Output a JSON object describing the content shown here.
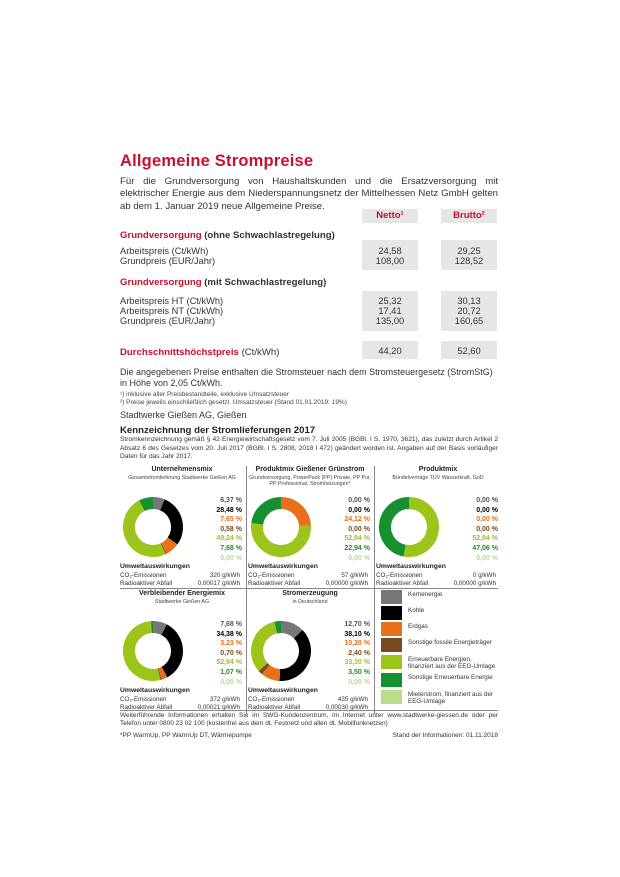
{
  "title": "Allgemeine Strompreise",
  "intro": "Für die Grundversorgung von Haushaltskunden und die Ersatzversorgung mit elektrischer Energie aus dem Niederspannungsnetz der Mittelhessen Netz GmbH gelten ab dem 1. Januar 2019 neue Allgemeine Preise.",
  "headers": {
    "netto": "Netto¹",
    "brutto": "Brutto²"
  },
  "section1": {
    "title": "Grundversorgung",
    "sub": "(ohne Schwachlastregelung)",
    "rows": [
      {
        "label": "Arbeitspreis (Ct/kWh)",
        "netto": "24,58",
        "brutto": "29,25"
      },
      {
        "label": "Grundpreis (EUR/Jahr)",
        "netto": "108,00",
        "brutto": "128,52"
      }
    ]
  },
  "section2": {
    "title": "Grundversorgung",
    "sub": "(mit Schwachlastregelung)",
    "rows": [
      {
        "label": "Arbeitspreis HT (Ct/kWh)",
        "netto": "25,32",
        "brutto": "30,13"
      },
      {
        "label": "Arbeitspreis NT (Ct/kWh)",
        "netto": "17,41",
        "brutto": "20,72"
      },
      {
        "label": "Grundpreis (EUR/Jahr)",
        "netto": "135,00",
        "brutto": "160,65"
      }
    ]
  },
  "section3": {
    "title": "Durchschnittshöchstpreis",
    "sub": "(Ct/kWh)",
    "netto": "44,20",
    "brutto": "52,60"
  },
  "tax_note": "Die angegebenen Preise enthalten die Stromsteuer nach dem Stromsteuergesetz (StromStG) in Höhe von 2,05 Ct/kWh.",
  "footnote1": "¹) inklusive aller Preisbestandteile, exklusive Umsatzsteuer",
  "footnote2": "²) Preise jeweils einschließlich gesetzl. Umsatzsteuer (Stand 01.01.2019: 19%)",
  "company": "Stadtwerke Gießen AG, Gießen",
  "kenn_title": "Kennzeichnung der Stromlieferungen 2017",
  "kenn_text": "Stromkennzeichnung gemäß § 42 Energiewirtschaftsgesetz vom 7. Juli 2005 (BGBl. I S. 1970, 3621), das zuletzt durch Artikel 2 Absatz 6 des Gesetzes vom 20. Juli 2017 (BGBl. I S. 2808, 2018 I 472) geändert worden ist. Angaben auf der Basis vorläufiger Daten für das Jahr 2017.",
  "uw_title": "Umweltauswirkungen",
  "uw_co2": "CO₂-Emissionen",
  "uw_rad": "Radioaktiver Abfall",
  "colors": {
    "Kernenergie": "#777777",
    "Kohle": "#000000",
    "Erdgas": "#e8701a",
    "Sonstige fossile": "#7a4a20",
    "EEG": "#9dc41a",
    "Sonstige EE": "#17902f",
    "Mieterstrom": "#b9dc8a"
  },
  "chart_data": [
    {
      "type": "pie",
      "title": "Unternehmensmix",
      "subtitle": "Gesamtstromlieferung Stadtwerke Gießen AG",
      "categories": [
        "Kernenergie",
        "Kohle",
        "Erdgas",
        "Sonstige fossile Energieträger",
        "Erneuerbare Energien, finanziert aus der EEG-Umlage",
        "Sonstige Erneuerbare Energie",
        "Mieterstrom, finanziert aus der EEG-Umlage"
      ],
      "values": [
        6.37,
        28.48,
        7.65,
        0.58,
        49.24,
        7.68,
        0.0
      ],
      "labels": [
        "6,37 %",
        "28,48 %",
        "7,65 %",
        "0,58 %",
        "49,24 %",
        "7,68 %",
        "0,00 %"
      ],
      "co2": "320 g/kWh",
      "rad": "0,00017 g/kWh"
    },
    {
      "type": "pie",
      "title": "Produktmix Gießener Grünstrom",
      "subtitle": "Grundversorgung, PowerPack (PP) Private, PP Pur, PP Professional, Stromheizungen*",
      "categories": [
        "Kernenergie",
        "Kohle",
        "Erdgas",
        "Sonstige fossile Energieträger",
        "Erneuerbare Energien, finanziert aus der EEG-Umlage",
        "Sonstige Erneuerbare Energie",
        "Mieterstrom, finanziert aus der EEG-Umlage"
      ],
      "values": [
        0.0,
        0.0,
        24.12,
        0.0,
        52.94,
        22.94,
        0.0
      ],
      "labels": [
        "0,00 %",
        "0,00 %",
        "24,12 %",
        "0,00 %",
        "52,94 %",
        "22,94 %",
        "0,00 %"
      ],
      "co2": "57 g/kWh",
      "rad": "0,00000 g/kWh"
    },
    {
      "type": "pie",
      "title": "Produktmix",
      "subtitle": "Bündelverträge TÜV Wasserkraft, GoD",
      "categories": [
        "Kernenergie",
        "Kohle",
        "Erdgas",
        "Sonstige fossile Energieträger",
        "Erneuerbare Energien, finanziert aus der EEG-Umlage",
        "Sonstige Erneuerbare Energie",
        "Mieterstrom, finanziert aus der EEG-Umlage"
      ],
      "values": [
        0.0,
        0.0,
        0.0,
        0.0,
        52.94,
        47.06,
        0.0
      ],
      "labels": [
        "0,00 %",
        "0,00 %",
        "0,00 %",
        "0,00 %",
        "52,94 %",
        "47,06 %",
        "0,00 %"
      ],
      "co2": "0 g/kWh",
      "rad": "0,00000 g/kWh"
    },
    {
      "type": "pie",
      "title": "Verbleibender Energiemix",
      "subtitle": "Stadtwerke Gießen AG",
      "categories": [
        "Kernenergie",
        "Kohle",
        "Erdgas",
        "Sonstige fossile Energieträger",
        "Erneuerbare Energien, finanziert aus der EEG-Umlage",
        "Sonstige Erneuerbare Energie",
        "Mieterstrom, finanziert aus der EEG-Umlage"
      ],
      "values": [
        7.68,
        34.38,
        3.23,
        0.7,
        52.94,
        1.07,
        0.0
      ],
      "labels": [
        "7,68 %",
        "34,38 %",
        "3,23 %",
        "0,70 %",
        "52,94 %",
        "1,07 %",
        "0,00 %"
      ],
      "co2": "372 g/kWh",
      "rad": "0,00021 g/kWh"
    },
    {
      "type": "pie",
      "title": "Stromerzeugung",
      "subtitle": "in Deutschland",
      "categories": [
        "Kernenergie",
        "Kohle",
        "Erdgas",
        "Sonstige fossile Energieträger",
        "Erneuerbare Energien, finanziert aus der EEG-Umlage",
        "Sonstige Erneuerbare Energie",
        "Mieterstrom, finanziert aus der EEG-Umlage"
      ],
      "values": [
        12.7,
        38.1,
        10.2,
        2.4,
        33.1,
        3.5,
        0.0
      ],
      "labels": [
        "12,70 %",
        "38,10 %",
        "10,20 %",
        "2,40 %",
        "33,10 %",
        "3,50 %",
        "0,00 %"
      ],
      "co2": "435 g/kWh",
      "rad": "0,00030 g/kWh"
    }
  ],
  "legend": [
    {
      "label": "Kernenergie",
      "color": "#777777"
    },
    {
      "label": "Kohle",
      "color": "#000000"
    },
    {
      "label": "Erdgas",
      "color": "#e8701a"
    },
    {
      "label": "Sonstige fossile Energieträger",
      "color": "#7a4a20"
    },
    {
      "label": "Erneuerbare Energien, finanziert aus der EEG-Umlage",
      "color": "#9dc41a"
    },
    {
      "label": "Sonstige Erneuerbare Energie",
      "color": "#17902f"
    },
    {
      "label": "Mieterstrom, finanziert aus der EEG-Umlage",
      "color": "#b9dc8a"
    }
  ],
  "footer_info": "Weiterführende Informationen erhalten Sie im SWG-Kundenzentrum, im Internet unter www.stadtwerke-giessen.de oder per Telefon unter 0800 23 02 100 (kostenfrei aus dem dt. Festnetz und allen dt. Mobilfunknetzen)",
  "footer_note": "*PP WarmUp, PP WarmUp DT, Wärmepumpe",
  "footer_date": "Stand der Informationen: 01.11.2018"
}
